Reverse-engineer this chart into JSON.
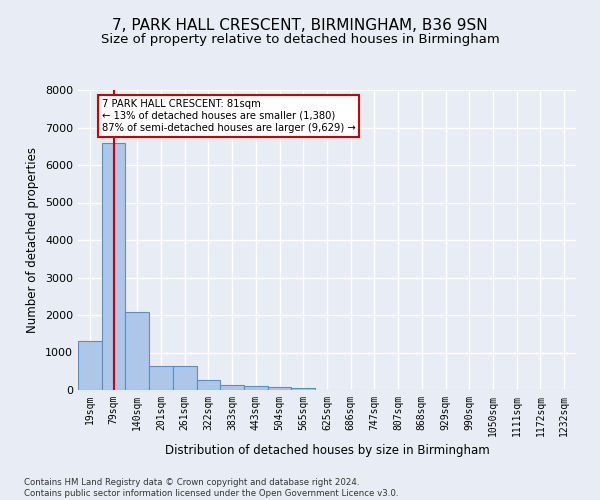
{
  "title_line1": "7, PARK HALL CRESCENT, BIRMINGHAM, B36 9SN",
  "title_line2": "Size of property relative to detached houses in Birmingham",
  "xlabel": "Distribution of detached houses by size in Birmingham",
  "ylabel": "Number of detached properties",
  "footnote": "Contains HM Land Registry data © Crown copyright and database right 2024.\nContains public sector information licensed under the Open Government Licence v3.0.",
  "bar_labels": [
    "19sqm",
    "79sqm",
    "140sqm",
    "201sqm",
    "261sqm",
    "322sqm",
    "383sqm",
    "443sqm",
    "504sqm",
    "565sqm",
    "625sqm",
    "686sqm",
    "747sqm",
    "807sqm",
    "868sqm",
    "929sqm",
    "990sqm",
    "1050sqm",
    "1111sqm",
    "1172sqm",
    "1232sqm"
  ],
  "bar_values": [
    1310,
    6580,
    2080,
    650,
    650,
    255,
    130,
    110,
    80,
    60,
    0,
    0,
    0,
    0,
    0,
    0,
    0,
    0,
    0,
    0,
    0
  ],
  "bar_color": "#aec6e8",
  "bar_edge_color": "#5a8fc4",
  "property_line_x": 1,
  "property_line_color": "#cc0000",
  "annotation_text": "7 PARK HALL CRESCENT: 81sqm\n← 13% of detached houses are smaller (1,380)\n87% of semi-detached houses are larger (9,629) →",
  "annotation_box_color": "#cc0000",
  "ylim": [
    0,
    8000
  ],
  "yticks": [
    0,
    1000,
    2000,
    3000,
    4000,
    5000,
    6000,
    7000,
    8000
  ],
  "bg_color": "#e8edf5",
  "plot_bg_color": "#e8edf5",
  "grid_color": "#ffffff",
  "title1_fontsize": 11,
  "title2_fontsize": 9.5
}
